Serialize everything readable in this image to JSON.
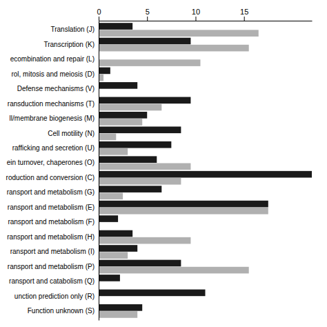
{
  "chart_data": {
    "type": "bar",
    "orientation": "horizontal",
    "categories": [
      "Translation (J)",
      "Transcription (K)",
      "ecombination and repair (L)",
      "rol, mitosis and meiosis (D)",
      "Defense mechanisms (V)",
      "ransduction mechanisms (T)",
      "ll/membrane biogenesis (M)",
      "Cell motility (N)",
      "rafficking and secretion (U)",
      "ein turnover, chaperones (O)",
      "roduction and conversion (C)",
      "ransport and metabolism (G)",
      "ransport and metabolism (E)",
      "ransport and metabolism (F)",
      "ransport and metabolism (H)",
      "ransport and metabolism (I)",
      "ransport and metabolism (P)",
      "ransport and catabolism (Q)",
      "unction prediction only (R)",
      "Function unknown (S)"
    ],
    "series": [
      {
        "color": "#1a1a1a",
        "values": [
          3.5,
          9.5,
          0.0,
          1.2,
          4.0,
          9.5,
          5.0,
          8.5,
          7.5,
          6.0,
          22.0,
          6.5,
          17.5,
          2.0,
          3.5,
          4.0,
          8.5,
          2.2,
          11.0,
          4.5
        ]
      },
      {
        "color": "#b0b0b0",
        "values": [
          16.5,
          15.5,
          10.5,
          0.5,
          0.0,
          6.5,
          4.5,
          1.8,
          3.0,
          9.5,
          8.5,
          2.5,
          17.5,
          0.0,
          9.5,
          3.0,
          15.5,
          0.0,
          0.0,
          4.0
        ]
      }
    ],
    "xlim": [
      0,
      22
    ],
    "xticks": [
      0,
      5,
      10,
      15
    ]
  }
}
